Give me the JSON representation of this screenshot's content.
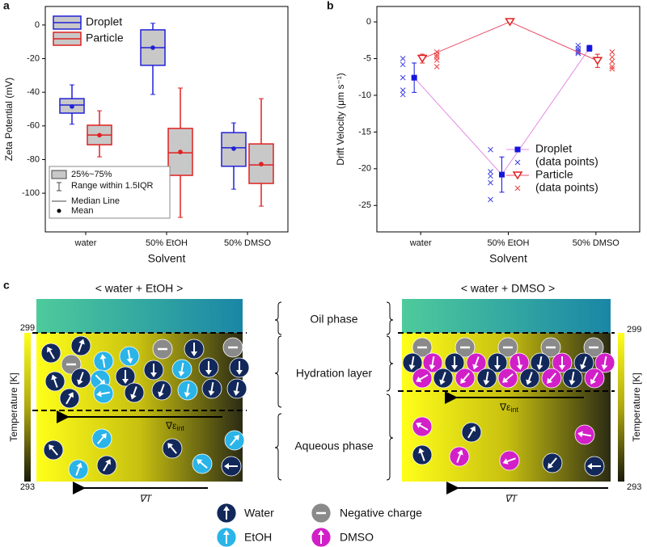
{
  "panel_labels": [
    "a",
    "b",
    "c"
  ],
  "chart_data": [
    {
      "type": "box",
      "x_label": "Solvent",
      "y_label": "Zeta Potential (mV)",
      "categories": [
        "water",
        "50% EtOH",
        "50% DMSO"
      ],
      "ylim": [
        -123,
        11
      ],
      "yticks": [
        0,
        -20,
        -40,
        -60,
        -80,
        -100
      ],
      "box_fill": "#c8c8c8",
      "series": [
        {
          "name": "Droplet",
          "color": "#2020d8",
          "whisker_low": [
            -59,
            -41.3,
            -97.6
          ],
          "q1": [
            -52.4,
            -24,
            -84
          ],
          "median": [
            -47.6,
            -13.5,
            -73
          ],
          "q3": [
            -43.8,
            -2.9,
            -64
          ],
          "whisker_high": [
            -35.6,
            1,
            -58.2
          ],
          "mean": [
            -48.5,
            -13.5,
            -73.5
          ]
        },
        {
          "name": "Particle",
          "color": "#e02020",
          "whisker_low": [
            -78.4,
            -114.4,
            -107.7
          ],
          "q1": [
            -71.2,
            -89.4,
            -94.2
          ],
          "median": [
            -65.4,
            -76,
            -83.2
          ],
          "q3": [
            -59.6,
            -61.5,
            -70.7
          ],
          "whisker_high": [
            -51,
            -37.5,
            -43.8
          ],
          "mean": [
            -65.5,
            -75.5,
            -82.7
          ]
        }
      ],
      "key": [
        "25%~75%",
        "Range within 1.5IQR",
        "Median Line",
        "Mean"
      ]
    },
    {
      "type": "mean-points",
      "x_label": "Solvent",
      "y_label": "Drift Velocity (μm s⁻¹)",
      "categories": [
        "water",
        "50% EtOH",
        "50% DMSO"
      ],
      "ylim": [
        -28.6,
        2.1
      ],
      "yticks": [
        0,
        -5,
        -10,
        -15,
        -20,
        -25
      ],
      "series": [
        {
          "name": "Droplet",
          "color": "#1515e0",
          "line_color": "#e58ae5",
          "marker": "square",
          "values": [
            -7.6,
            -20.8,
            -3.6
          ],
          "errors": [
            2,
            2.4,
            0.4
          ]
        },
        {
          "name": "(data points)",
          "color": "#4040e0",
          "marker": "x",
          "values": [
            [
              -5,
              -5.8,
              -7.6,
              -9.3,
              -9.9
            ],
            [
              -17.4,
              -20.4,
              -21,
              -21.9,
              -24.2
            ],
            [
              -3.2,
              -3.6,
              -3.9,
              -4.1,
              -4.3
            ]
          ]
        },
        {
          "name": "Particle",
          "color": "#e02020",
          "line_color": "#e8506a",
          "marker": "triangle",
          "values": [
            -5,
            0,
            -5.3
          ],
          "errors": [
            0.6,
            0,
            0.9
          ]
        },
        {
          "name": "(data points)",
          "color": "#e84040",
          "marker": "x",
          "values": [
            [
              -4.1,
              -4.5,
              -4.8,
              -5.2,
              -6.1
            ],
            [],
            [
              -4.1,
              -4.8,
              -5.4,
              -6.1,
              -6.4
            ]
          ]
        }
      ]
    }
  ],
  "diagram": {
    "left_title": "< water + EtOH >",
    "right_title": "< water + DMSO >",
    "phases": [
      "Oil phase",
      "Hydration layer",
      "Aqueous phase"
    ],
    "colorbar": {
      "label": "Temperature [K]",
      "max": "299",
      "min": "293"
    },
    "permittivity_gradient": {
      "symbol": "∇ε",
      "subscript": "int"
    },
    "temperature_gradient": "∇T",
    "legend": [
      "Water",
      "Negative charge",
      "EtOH",
      "DMSO"
    ]
  }
}
